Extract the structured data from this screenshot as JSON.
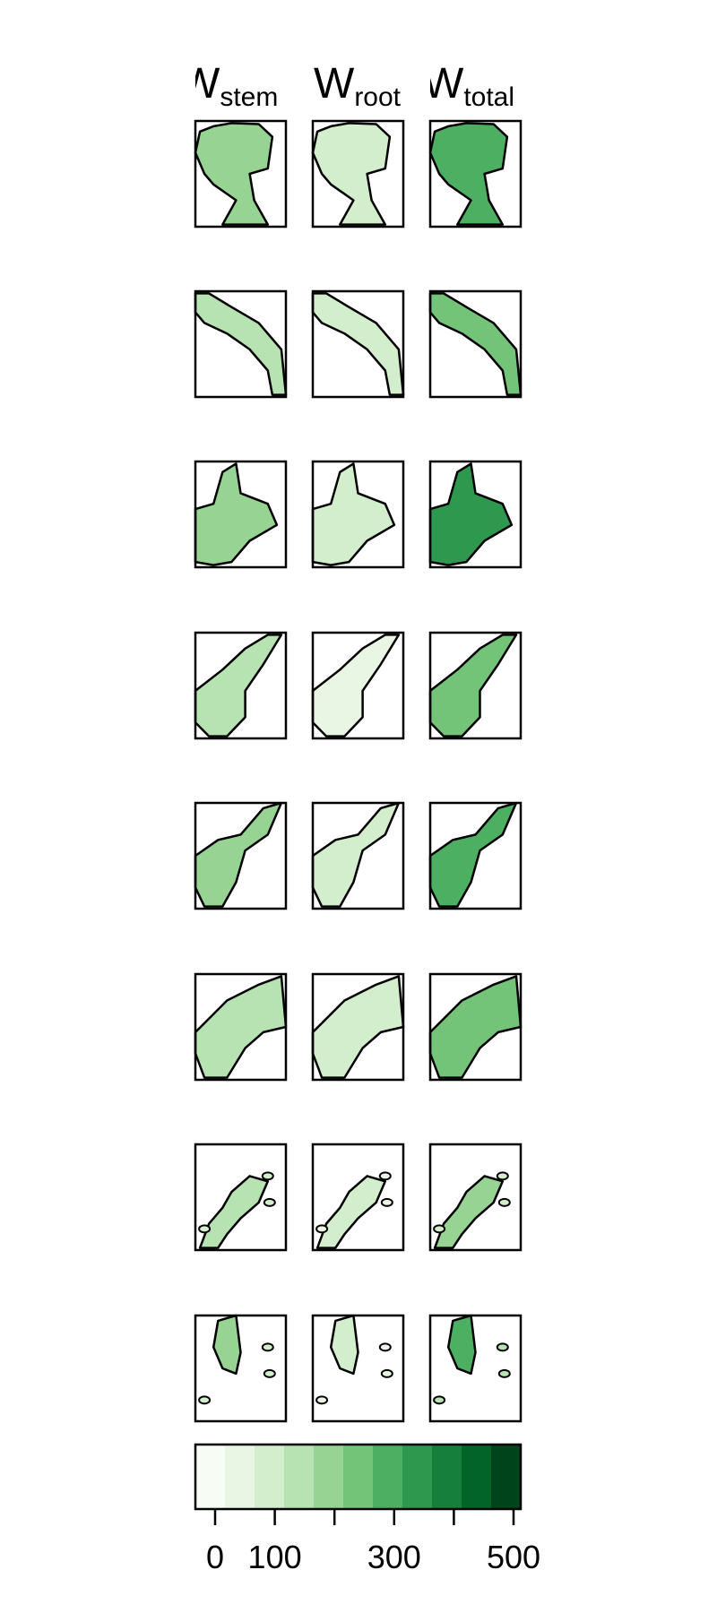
{
  "columns": [
    {
      "symbol": "W",
      "subscript": "stem",
      "display": "Wstem"
    },
    {
      "symbol": "W",
      "subscript": "root",
      "display": "Wroot"
    },
    {
      "symbol": "W",
      "subscript": "total",
      "display": "Wtotal"
    }
  ],
  "row_count": 8,
  "colorbar": {
    "ticks": [
      0,
      100,
      200,
      300,
      400,
      500
    ],
    "tick_labels": [
      "0",
      "100",
      "",
      "300",
      "",
      "500"
    ],
    "min": 0,
    "max": 500,
    "colors": [
      "#f7fcf5",
      "#e8f6e3",
      "#d3eecd",
      "#b7e2b1",
      "#97d494",
      "#73c378",
      "#4daf62",
      "#2f984f",
      "#157f3b",
      "#036429",
      "#00441b"
    ]
  },
  "colors": {
    "outline": "#000000",
    "fill_light": "#e5f5e0",
    "fill_mid": "#a1d99b",
    "fill_dark": "#41ab5d"
  }
}
